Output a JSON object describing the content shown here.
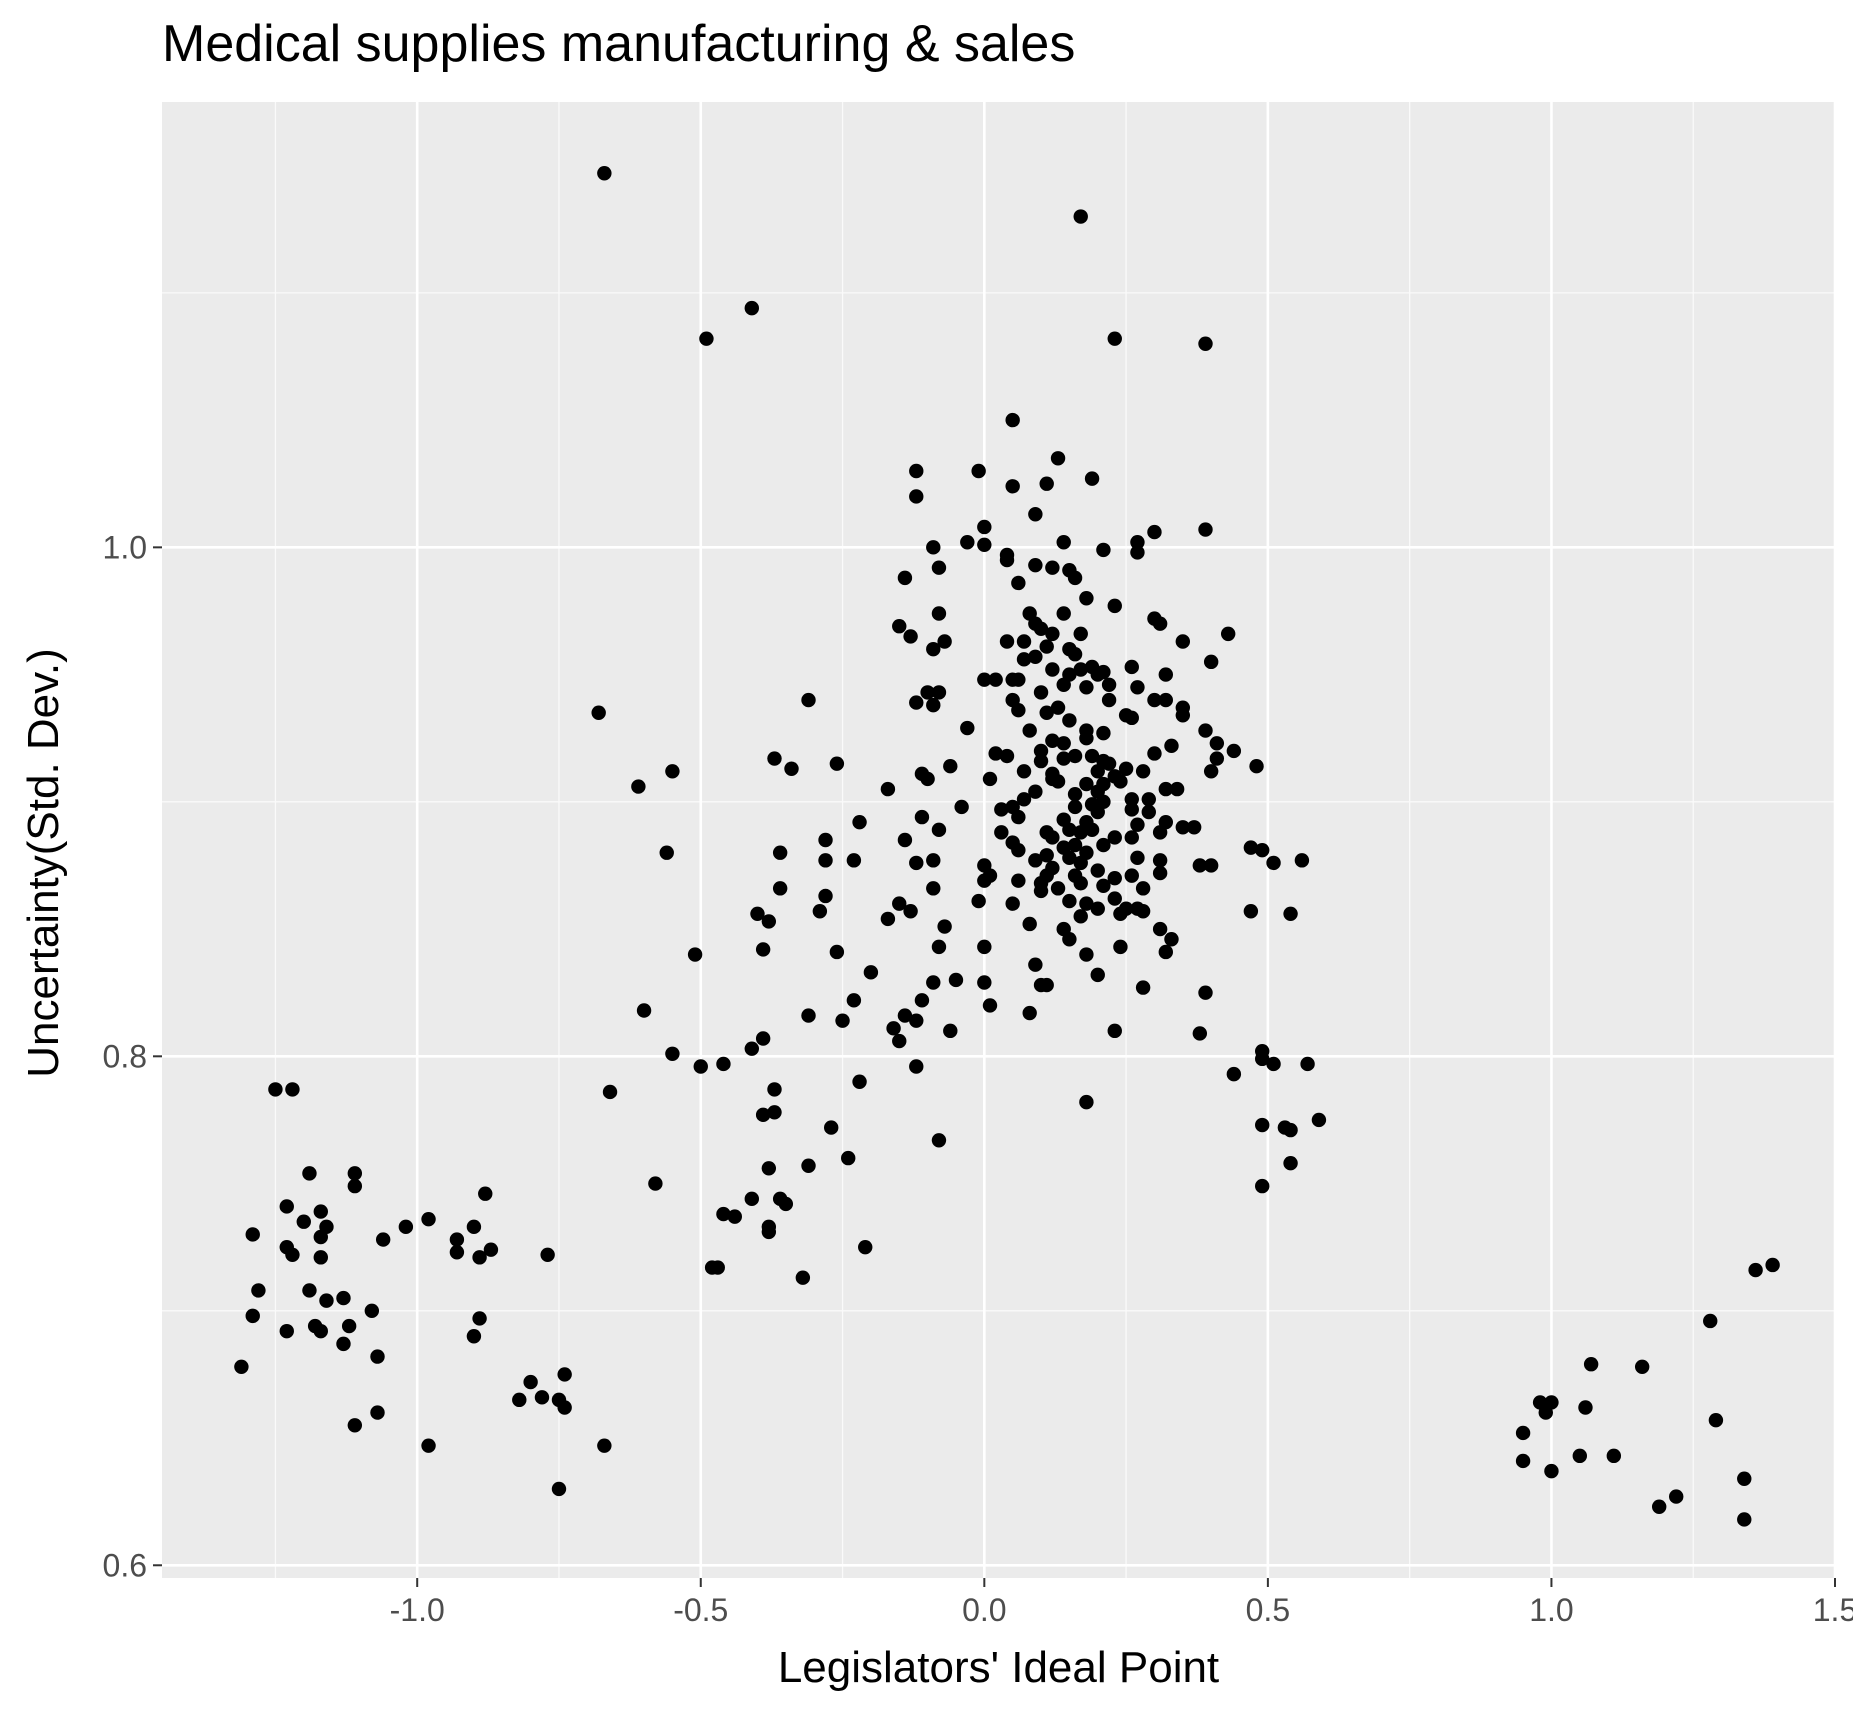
{
  "chart_data": {
    "type": "scatter",
    "title": "Medical supplies manufacturing & sales",
    "xlabel": "Legislators' Ideal Point",
    "ylabel": "Uncertainty(Std. Dev.)",
    "xlim": [
      -1.45,
      1.5
    ],
    "ylim": [
      0.595,
      1.175
    ],
    "xticks": [
      {
        "value": -1.0,
        "label": "-1.0"
      },
      {
        "value": -0.5,
        "label": "-0.5"
      },
      {
        "value": 0.0,
        "label": "0.0"
      },
      {
        "value": 0.5,
        "label": "0.5"
      },
      {
        "value": 1.0,
        "label": "1.0"
      },
      {
        "value": 1.5,
        "label": "1.5"
      }
    ],
    "yticks": [
      {
        "value": 0.6,
        "label": "0.6"
      },
      {
        "value": 0.8,
        "label": "0.8"
      },
      {
        "value": 1.0,
        "label": "1.0"
      }
    ],
    "grid": true,
    "background": "#ebebeb",
    "point_color": "#000000",
    "points": [
      [
        -0.67,
        1.147
      ],
      [
        0.17,
        1.13
      ],
      [
        -0.41,
        1.094
      ],
      [
        -0.49,
        1.082
      ],
      [
        0.23,
        1.082
      ],
      [
        0.39,
        1.08
      ],
      [
        0.05,
        1.05
      ],
      [
        0.13,
        1.035
      ],
      [
        -0.12,
        1.03
      ],
      [
        -0.01,
        1.03
      ],
      [
        0.19,
        1.027
      ],
      [
        0.05,
        1.024
      ],
      [
        0.11,
        1.025
      ],
      [
        -0.12,
        1.02
      ],
      [
        0.09,
        1.013
      ],
      [
        0.0,
        1.008
      ],
      [
        0.39,
        1.007
      ],
      [
        0.3,
        1.006
      ],
      [
        0.14,
        1.002
      ],
      [
        0.27,
        1.002
      ],
      [
        -0.09,
        1.0
      ],
      [
        -0.03,
        1.002
      ],
      [
        0.0,
        1.001
      ],
      [
        0.21,
        0.999
      ],
      [
        0.27,
        0.998
      ],
      [
        0.04,
        0.997
      ],
      [
        0.04,
        0.995
      ],
      [
        0.09,
        0.993
      ],
      [
        0.12,
        0.992
      ],
      [
        0.15,
        0.991
      ],
      [
        -0.08,
        0.992
      ],
      [
        0.16,
        0.988
      ],
      [
        0.06,
        0.986
      ],
      [
        -0.14,
        0.988
      ],
      [
        0.18,
        0.98
      ],
      [
        0.23,
        0.977
      ],
      [
        0.08,
        0.974
      ],
      [
        -0.08,
        0.974
      ],
      [
        0.14,
        0.974
      ],
      [
        0.3,
        0.972
      ],
      [
        0.09,
        0.97
      ],
      [
        0.31,
        0.97
      ],
      [
        0.1,
        0.968
      ],
      [
        -0.15,
        0.969
      ],
      [
        0.43,
        0.966
      ],
      [
        0.17,
        0.966
      ],
      [
        -0.13,
        0.965
      ],
      [
        0.12,
        0.966
      ],
      [
        0.04,
        0.963
      ],
      [
        0.07,
        0.963
      ],
      [
        -0.07,
        0.963
      ],
      [
        0.35,
        0.963
      ],
      [
        0.11,
        0.961
      ],
      [
        -0.09,
        0.96
      ],
      [
        0.15,
        0.96
      ],
      [
        0.16,
        0.958
      ],
      [
        0.09,
        0.957
      ],
      [
        0.07,
        0.956
      ],
      [
        0.4,
        0.955
      ],
      [
        0.26,
        0.953
      ],
      [
        0.19,
        0.953
      ],
      [
        0.12,
        0.952
      ],
      [
        0.17,
        0.952
      ],
      [
        0.21,
        0.951
      ],
      [
        0.15,
        0.95
      ],
      [
        0.2,
        0.95
      ],
      [
        0.32,
        0.95
      ],
      [
        0.05,
        0.948
      ],
      [
        0.06,
        0.948
      ],
      [
        0.02,
        0.948
      ],
      [
        0.0,
        0.948
      ],
      [
        -0.31,
        0.94
      ],
      [
        0.22,
        0.946
      ],
      [
        0.14,
        0.946
      ],
      [
        0.18,
        0.945
      ],
      [
        0.27,
        0.945
      ],
      [
        -0.08,
        0.943
      ],
      [
        -0.1,
        0.943
      ],
      [
        0.1,
        0.943
      ],
      [
        0.22,
        0.94
      ],
      [
        0.3,
        0.94
      ],
      [
        0.32,
        0.94
      ],
      [
        0.05,
        0.94
      ],
      [
        -0.12,
        0.939
      ],
      [
        -0.09,
        0.938
      ],
      [
        0.13,
        0.937
      ],
      [
        0.35,
        0.937
      ],
      [
        0.06,
        0.936
      ],
      [
        0.11,
        0.935
      ],
      [
        -0.68,
        0.935
      ],
      [
        0.35,
        0.934
      ],
      [
        0.25,
        0.934
      ],
      [
        0.26,
        0.933
      ],
      [
        0.15,
        0.932
      ],
      [
        -0.03,
        0.929
      ],
      [
        0.08,
        0.928
      ],
      [
        0.18,
        0.928
      ],
      [
        0.39,
        0.928
      ],
      [
        0.21,
        0.927
      ],
      [
        0.18,
        0.925
      ],
      [
        0.12,
        0.924
      ],
      [
        0.14,
        0.923
      ],
      [
        0.41,
        0.923
      ],
      [
        0.33,
        0.922
      ],
      [
        0.1,
        0.92
      ],
      [
        0.44,
        0.92
      ],
      [
        0.3,
        0.919
      ],
      [
        0.02,
        0.919
      ],
      [
        0.04,
        0.918
      ],
      [
        0.16,
        0.918
      ],
      [
        0.19,
        0.918
      ],
      [
        -0.37,
        0.917
      ],
      [
        0.14,
        0.917
      ],
      [
        0.41,
        0.917
      ],
      [
        -0.26,
        0.915
      ],
      [
        0.1,
        0.916
      ],
      [
        0.21,
        0.916
      ],
      [
        0.22,
        0.915
      ],
      [
        -0.34,
        0.913
      ],
      [
        0.48,
        0.914
      ],
      [
        -0.06,
        0.914
      ],
      [
        0.25,
        0.913
      ],
      [
        0.2,
        0.912
      ],
      [
        0.28,
        0.912
      ],
      [
        -0.55,
        0.912
      ],
      [
        0.07,
        0.912
      ],
      [
        -0.11,
        0.911
      ],
      [
        0.12,
        0.911
      ],
      [
        0.4,
        0.912
      ],
      [
        0.23,
        0.91
      ],
      [
        0.12,
        0.909
      ],
      [
        0.01,
        0.909
      ],
      [
        -0.1,
        0.909
      ],
      [
        0.13,
        0.908
      ],
      [
        0.24,
        0.908
      ],
      [
        0.18,
        0.907
      ],
      [
        0.21,
        0.907
      ],
      [
        -0.61,
        0.906
      ],
      [
        0.32,
        0.905
      ],
      [
        0.34,
        0.905
      ],
      [
        0.09,
        0.904
      ],
      [
        0.2,
        0.904
      ],
      [
        0.16,
        0.903
      ],
      [
        -0.17,
        0.905
      ],
      [
        0.26,
        0.901
      ],
      [
        0.07,
        0.901
      ],
      [
        0.29,
        0.901
      ],
      [
        0.21,
        0.9
      ],
      [
        0.19,
        0.899
      ],
      [
        0.05,
        0.898
      ],
      [
        0.16,
        0.898
      ],
      [
        -0.04,
        0.898
      ],
      [
        0.03,
        0.897
      ],
      [
        0.26,
        0.897
      ],
      [
        0.2,
        0.896
      ],
      [
        0.29,
        0.896
      ],
      [
        0.06,
        0.894
      ],
      [
        -0.11,
        0.894
      ],
      [
        0.14,
        0.893
      ],
      [
        0.32,
        0.892
      ],
      [
        0.18,
        0.892
      ],
      [
        -0.22,
        0.892
      ],
      [
        0.27,
        0.891
      ],
      [
        0.37,
        0.89
      ],
      [
        0.35,
        0.89
      ],
      [
        0.15,
        0.889
      ],
      [
        0.19,
        0.889
      ],
      [
        -0.08,
        0.889
      ],
      [
        0.03,
        0.888
      ],
      [
        0.11,
        0.888
      ],
      [
        0.17,
        0.888
      ],
      [
        0.31,
        0.888
      ],
      [
        0.23,
        0.886
      ],
      [
        0.26,
        0.886
      ],
      [
        0.12,
        0.886
      ],
      [
        -0.28,
        0.885
      ],
      [
        -0.14,
        0.885
      ],
      [
        0.05,
        0.884
      ],
      [
        0.16,
        0.883
      ],
      [
        0.21,
        0.883
      ],
      [
        0.14,
        0.882
      ],
      [
        0.47,
        0.882
      ],
      [
        0.49,
        0.881
      ],
      [
        0.06,
        0.881
      ],
      [
        -0.36,
        0.88
      ],
      [
        -0.56,
        0.88
      ],
      [
        0.18,
        0.88
      ],
      [
        0.11,
        0.879
      ],
      [
        0.15,
        0.878
      ],
      [
        0.27,
        0.878
      ],
      [
        -0.28,
        0.877
      ],
      [
        0.31,
        0.877
      ],
      [
        -0.23,
        0.877
      ],
      [
        -0.09,
        0.877
      ],
      [
        0.09,
        0.877
      ],
      [
        0.56,
        0.877
      ],
      [
        -0.12,
        0.876
      ],
      [
        0.17,
        0.876
      ],
      [
        0.51,
        0.876
      ],
      [
        0.38,
        0.875
      ],
      [
        0.4,
        0.875
      ],
      [
        0.0,
        0.875
      ],
      [
        0.12,
        0.874
      ],
      [
        0.2,
        0.873
      ],
      [
        0.31,
        0.872
      ],
      [
        0.11,
        0.871
      ],
      [
        0.01,
        0.871
      ],
      [
        0.26,
        0.871
      ],
      [
        0.16,
        0.871
      ],
      [
        0.23,
        0.87
      ],
      [
        0.06,
        0.869
      ],
      [
        0.0,
        0.869
      ],
      [
        0.1,
        0.868
      ],
      [
        0.17,
        0.868
      ],
      [
        0.21,
        0.867
      ],
      [
        0.13,
        0.866
      ],
      [
        -0.09,
        0.866
      ],
      [
        0.28,
        0.866
      ],
      [
        0.1,
        0.865
      ],
      [
        -0.36,
        0.866
      ],
      [
        -0.28,
        0.863
      ],
      [
        0.23,
        0.862
      ],
      [
        0.15,
        0.861
      ],
      [
        -0.01,
        0.861
      ],
      [
        0.05,
        0.86
      ],
      [
        0.18,
        0.86
      ],
      [
        0.2,
        0.858
      ],
      [
        -0.13,
        0.857
      ],
      [
        0.25,
        0.858
      ],
      [
        0.27,
        0.858
      ],
      [
        0.28,
        0.857
      ],
      [
        -0.15,
        0.86
      ],
      [
        0.47,
        0.857
      ],
      [
        -0.29,
        0.857
      ],
      [
        0.17,
        0.855
      ],
      [
        -0.4,
        0.856
      ],
      [
        0.54,
        0.856
      ],
      [
        0.24,
        0.856
      ],
      [
        -0.17,
        0.854
      ],
      [
        -0.38,
        0.853
      ],
      [
        0.08,
        0.852
      ],
      [
        -0.07,
        0.851
      ],
      [
        0.31,
        0.85
      ],
      [
        0.14,
        0.85
      ],
      [
        0.15,
        0.846
      ],
      [
        0.33,
        0.846
      ],
      [
        0.24,
        0.843
      ],
      [
        0.0,
        0.843
      ],
      [
        -0.08,
        0.843
      ],
      [
        -0.39,
        0.842
      ],
      [
        -0.51,
        0.84
      ],
      [
        0.32,
        0.841
      ],
      [
        -0.26,
        0.841
      ],
      [
        0.18,
        0.84
      ],
      [
        0.09,
        0.836
      ],
      [
        -0.2,
        0.833
      ],
      [
        0.2,
        0.832
      ],
      [
        -0.05,
        0.83
      ],
      [
        0.0,
        0.829
      ],
      [
        0.1,
        0.828
      ],
      [
        0.11,
        0.828
      ],
      [
        -0.09,
        0.829
      ],
      [
        0.28,
        0.827
      ],
      [
        0.39,
        0.825
      ],
      [
        -0.23,
        0.822
      ],
      [
        -0.11,
        0.822
      ],
      [
        0.01,
        0.82
      ],
      [
        -0.6,
        0.818
      ],
      [
        0.08,
        0.817
      ],
      [
        -0.31,
        0.816
      ],
      [
        -0.14,
        0.816
      ],
      [
        -0.12,
        0.814
      ],
      [
        -0.25,
        0.814
      ],
      [
        -0.16,
        0.811
      ],
      [
        -0.06,
        0.81
      ],
      [
        0.23,
        0.81
      ],
      [
        0.38,
        0.809
      ],
      [
        -0.15,
        0.806
      ],
      [
        -0.39,
        0.807
      ],
      [
        -0.41,
        0.803
      ],
      [
        0.49,
        0.802
      ],
      [
        -0.55,
        0.801
      ],
      [
        0.49,
        0.799
      ],
      [
        0.51,
        0.797
      ],
      [
        0.57,
        0.797
      ],
      [
        -0.46,
        0.797
      ],
      [
        -0.5,
        0.796
      ],
      [
        -0.12,
        0.796
      ],
      [
        0.44,
        0.793
      ],
      [
        -0.22,
        0.79
      ],
      [
        -0.66,
        0.786
      ],
      [
        -1.25,
        0.787
      ],
      [
        -1.22,
        0.787
      ],
      [
        -0.37,
        0.787
      ],
      [
        0.18,
        0.782
      ],
      [
        -0.37,
        0.778
      ],
      [
        -0.39,
        0.777
      ],
      [
        0.59,
        0.775
      ],
      [
        0.49,
        0.773
      ],
      [
        -0.27,
        0.772
      ],
      [
        0.53,
        0.772
      ],
      [
        0.54,
        0.771
      ],
      [
        -0.08,
        0.767
      ],
      [
        -0.24,
        0.76
      ],
      [
        0.54,
        0.758
      ],
      [
        -0.31,
        0.757
      ],
      [
        -0.38,
        0.756
      ],
      [
        -1.19,
        0.754
      ],
      [
        -1.11,
        0.754
      ],
      [
        -0.58,
        0.75
      ],
      [
        -1.11,
        0.749
      ],
      [
        0.49,
        0.749
      ],
      [
        -0.88,
        0.746
      ],
      [
        -0.36,
        0.744
      ],
      [
        -0.41,
        0.744
      ],
      [
        -0.35,
        0.742
      ],
      [
        -1.23,
        0.741
      ],
      [
        -1.17,
        0.739
      ],
      [
        -0.46,
        0.738
      ],
      [
        -0.44,
        0.737
      ],
      [
        -0.98,
        0.736
      ],
      [
        -1.2,
        0.735
      ],
      [
        -1.02,
        0.733
      ],
      [
        -0.38,
        0.733
      ],
      [
        -1.16,
        0.733
      ],
      [
        -0.9,
        0.733
      ],
      [
        -0.38,
        0.731
      ],
      [
        -1.29,
        0.73
      ],
      [
        -1.17,
        0.729
      ],
      [
        -1.06,
        0.728
      ],
      [
        -0.93,
        0.728
      ],
      [
        -1.23,
        0.725
      ],
      [
        -0.21,
        0.725
      ],
      [
        -0.87,
        0.724
      ],
      [
        -0.93,
        0.723
      ],
      [
        -1.22,
        0.722
      ],
      [
        -1.17,
        0.721
      ],
      [
        -0.89,
        0.721
      ],
      [
        -0.77,
        0.722
      ],
      [
        -0.48,
        0.717
      ],
      [
        -0.47,
        0.717
      ],
      [
        -0.32,
        0.713
      ],
      [
        1.36,
        0.716
      ],
      [
        1.39,
        0.718
      ],
      [
        -1.28,
        0.708
      ],
      [
        -1.19,
        0.708
      ],
      [
        -1.13,
        0.705
      ],
      [
        -1.16,
        0.704
      ],
      [
        -1.08,
        0.7
      ],
      [
        -1.29,
        0.698
      ],
      [
        -0.89,
        0.697
      ],
      [
        -1.18,
        0.694
      ],
      [
        -1.12,
        0.694
      ],
      [
        -1.17,
        0.692
      ],
      [
        -1.23,
        0.692
      ],
      [
        1.28,
        0.696
      ],
      [
        -0.9,
        0.69
      ],
      [
        -1.13,
        0.687
      ],
      [
        -1.07,
        0.682
      ],
      [
        1.07,
        0.679
      ],
      [
        -1.31,
        0.678
      ],
      [
        1.16,
        0.678
      ],
      [
        -0.74,
        0.675
      ],
      [
        -0.8,
        0.672
      ],
      [
        -0.82,
        0.665
      ],
      [
        -0.78,
        0.666
      ],
      [
        -0.75,
        0.665
      ],
      [
        -0.74,
        0.662
      ],
      [
        0.98,
        0.664
      ],
      [
        1.0,
        0.664
      ],
      [
        0.99,
        0.66
      ],
      [
        1.06,
        0.662
      ],
      [
        -1.07,
        0.66
      ],
      [
        1.29,
        0.657
      ],
      [
        -1.11,
        0.655
      ],
      [
        0.95,
        0.652
      ],
      [
        -0.98,
        0.647
      ],
      [
        -0.67,
        0.647
      ],
      [
        1.05,
        0.643
      ],
      [
        1.11,
        0.643
      ],
      [
        0.95,
        0.641
      ],
      [
        1.0,
        0.637
      ],
      [
        1.34,
        0.634
      ],
      [
        -0.75,
        0.63
      ],
      [
        1.22,
        0.627
      ],
      [
        1.19,
        0.623
      ],
      [
        1.34,
        0.618
      ]
    ]
  }
}
